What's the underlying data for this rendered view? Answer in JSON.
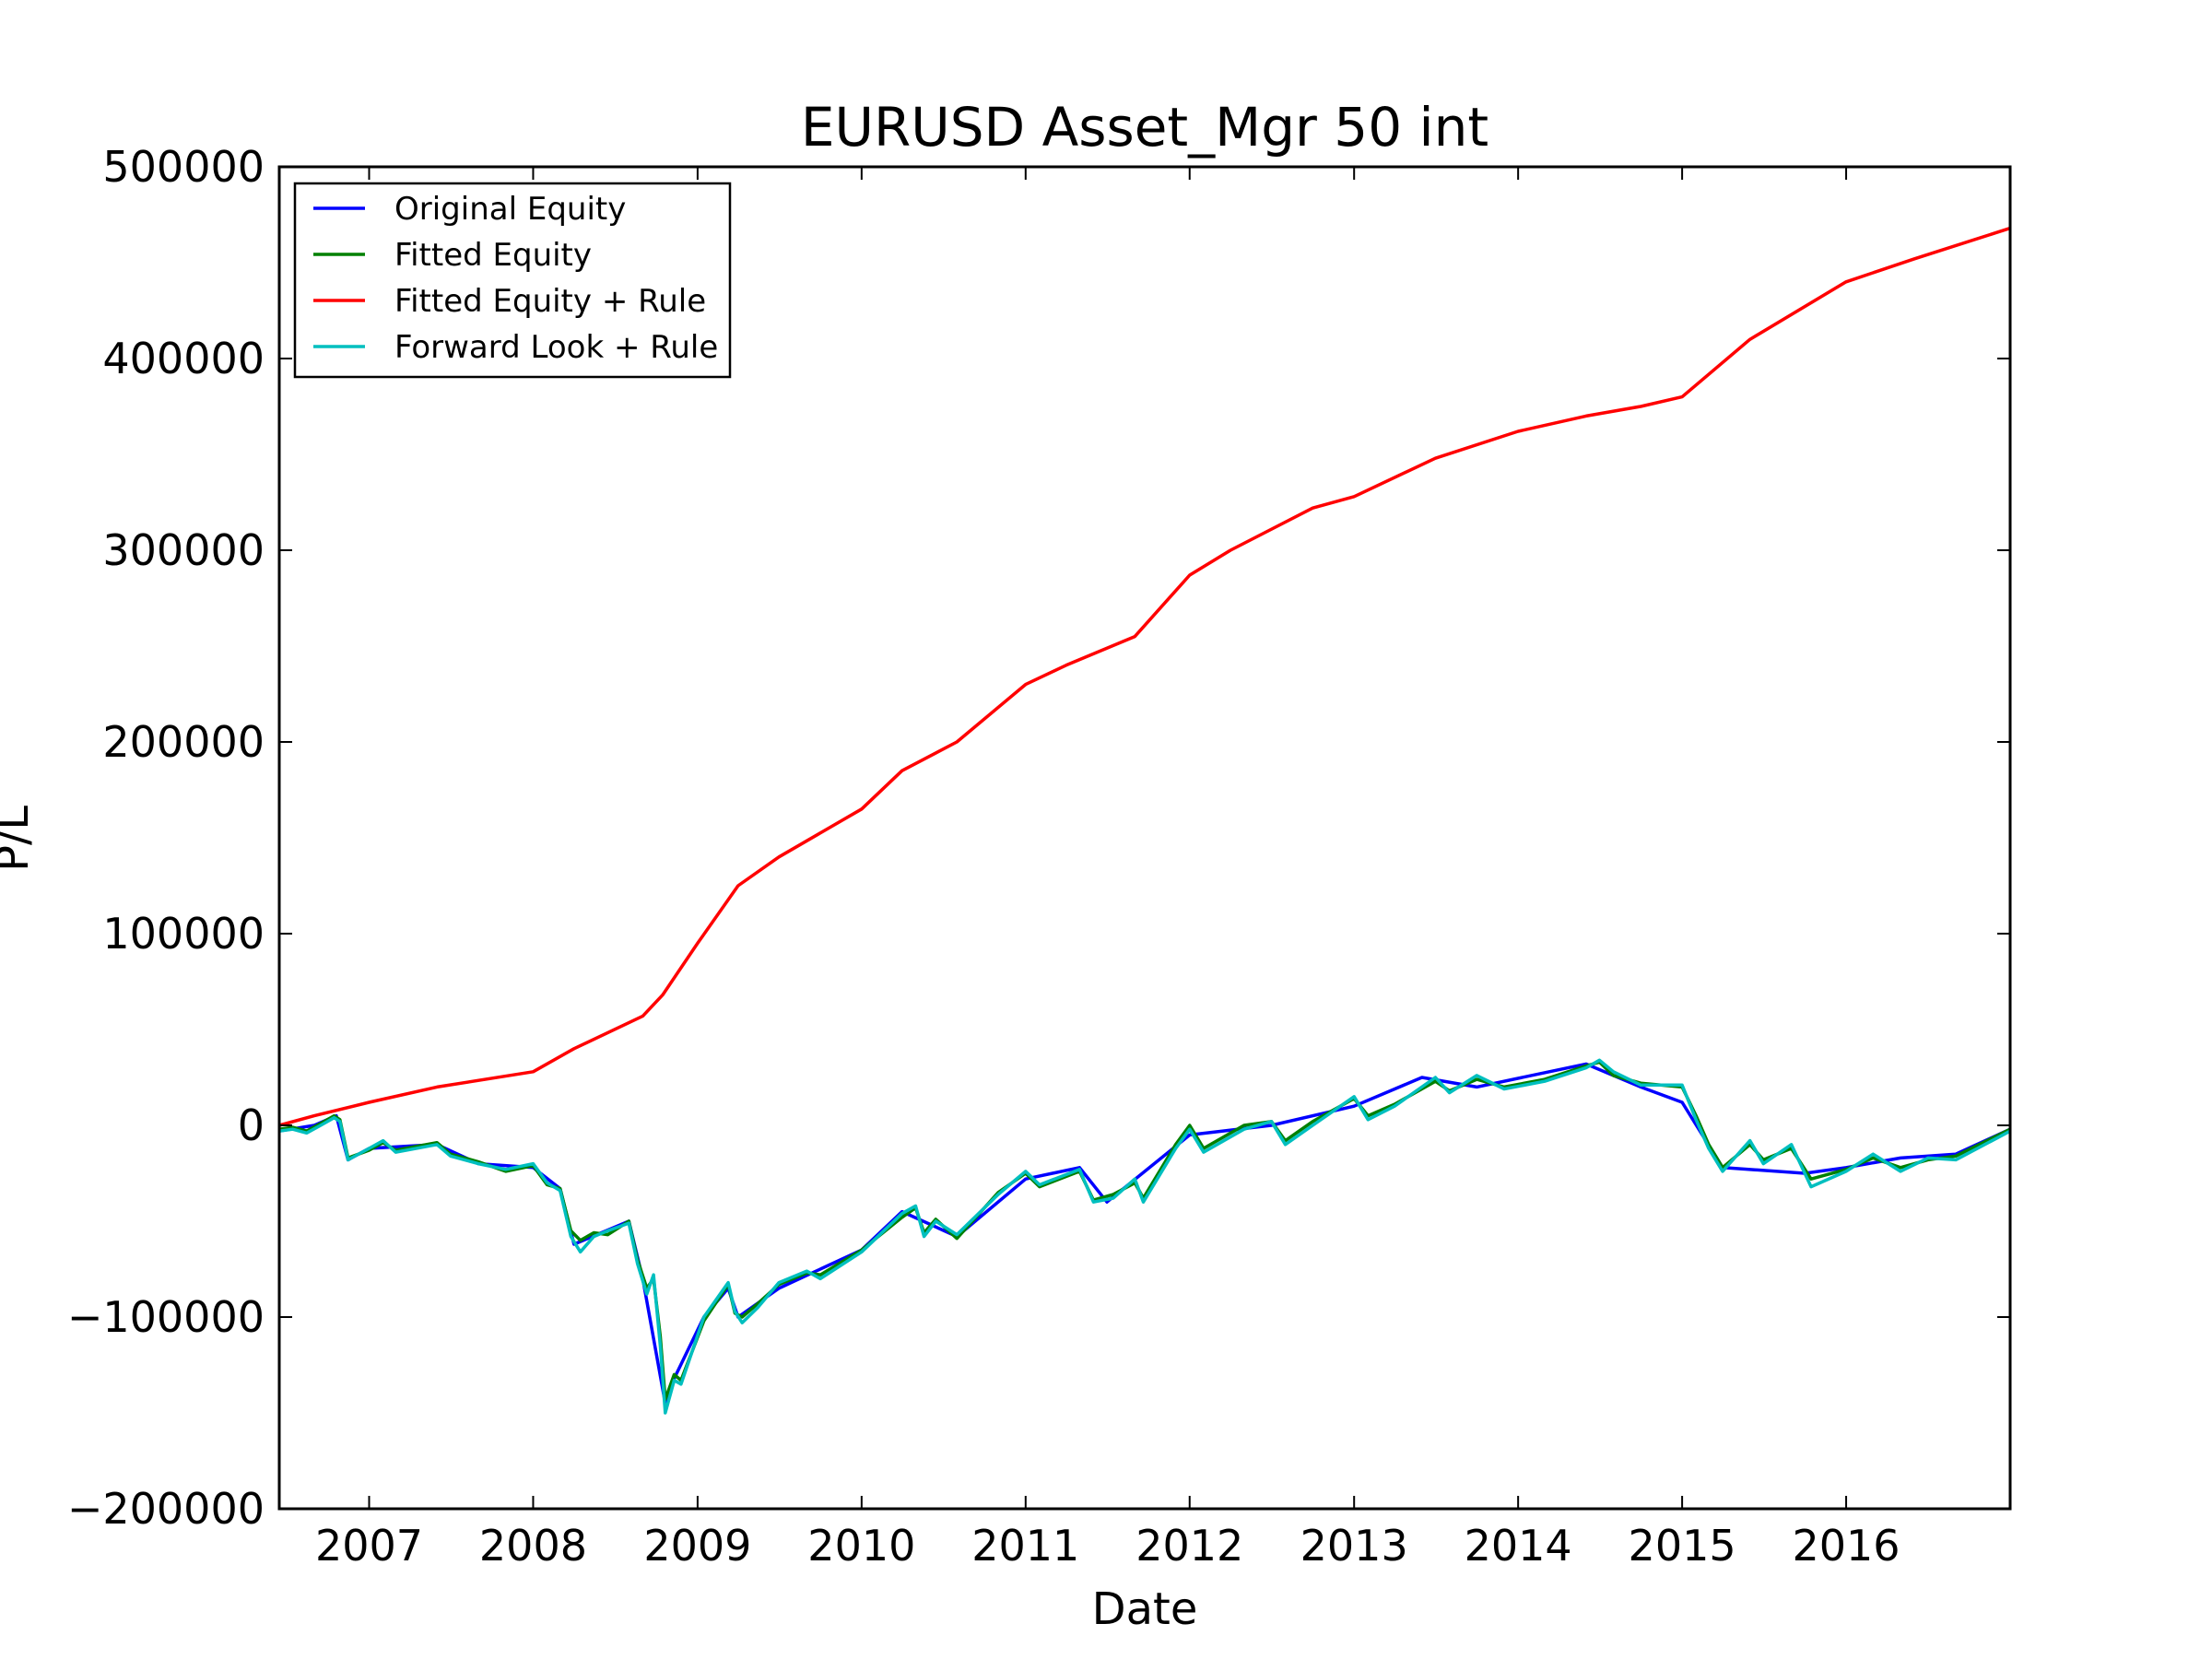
{
  "chart_data": {
    "type": "line",
    "title": "EURUSD Asset_Mgr 50 int",
    "xlabel": "Date",
    "ylabel": "P/L",
    "xlim": [
      "2006-06-15",
      "2016-12-31"
    ],
    "ylim": [
      -200000,
      500000
    ],
    "x_ticks": [
      "2007",
      "2008",
      "2009",
      "2010",
      "2011",
      "2012",
      "2013",
      "2014",
      "2015",
      "2016"
    ],
    "y_ticks": [
      {
        "value": -200000,
        "label": "−200000"
      },
      {
        "value": -100000,
        "label": "−100000"
      },
      {
        "value": 0,
        "label": "0"
      },
      {
        "value": 100000,
        "label": "100000"
      },
      {
        "value": 200000,
        "label": "200000"
      },
      {
        "value": 300000,
        "label": "300000"
      },
      {
        "value": 400000,
        "label": "400000"
      },
      {
        "value": 500000,
        "label": "500000"
      }
    ],
    "grid": false,
    "legend_position": "top-left",
    "series": [
      {
        "name": "Original Equity",
        "color": "#0000ff",
        "points": [
          [
            "2006-06-15",
            -3000
          ],
          [
            "2006-09-01",
            0
          ],
          [
            "2006-10-20",
            5000
          ],
          [
            "2006-11-15",
            -18000
          ],
          [
            "2007-01-01",
            -12000
          ],
          [
            "2007-06-01",
            -10000
          ],
          [
            "2007-09-01",
            -20000
          ],
          [
            "2008-01-01",
            -22000
          ],
          [
            "2008-03-01",
            -33000
          ],
          [
            "2008-04-01",
            -62000
          ],
          [
            "2008-08-01",
            -50000
          ],
          [
            "2008-09-01",
            -80000
          ],
          [
            "2008-10-21",
            -145000
          ],
          [
            "2008-11-10",
            -132000
          ],
          [
            "2009-01-15",
            -100000
          ],
          [
            "2009-03-10",
            -85000
          ],
          [
            "2009-04-01",
            -100000
          ],
          [
            "2009-07-01",
            -85000
          ],
          [
            "2010-01-01",
            -65000
          ],
          [
            "2010-04-01",
            -45000
          ],
          [
            "2010-08-01",
            -58000
          ],
          [
            "2011-01-01",
            -28000
          ],
          [
            "2011-05-01",
            -22000
          ],
          [
            "2011-07-01",
            -40000
          ],
          [
            "2012-01-01",
            -5000
          ],
          [
            "2012-07-01",
            0
          ],
          [
            "2013-01-01",
            10000
          ],
          [
            "2013-06-01",
            25000
          ],
          [
            "2013-10-01",
            20000
          ],
          [
            "2014-06-01",
            32000
          ],
          [
            "2014-10-01",
            20000
          ],
          [
            "2015-01-01",
            12000
          ],
          [
            "2015-04-01",
            -22000
          ],
          [
            "2015-10-01",
            -25000
          ],
          [
            "2016-01-01",
            -22000
          ],
          [
            "2016-05-01",
            -17000
          ],
          [
            "2016-09-01",
            -15000
          ],
          [
            "2016-12-31",
            -2000
          ]
        ]
      },
      {
        "name": "Fitted Equity",
        "color": "#008000",
        "points": [
          [
            "2006-06-15",
            -2000
          ],
          [
            "2006-07-15",
            -1000
          ],
          [
            "2006-08-15",
            -3000
          ],
          [
            "2006-09-15",
            1000
          ],
          [
            "2006-10-15",
            5000
          ],
          [
            "2006-10-28",
            3000
          ],
          [
            "2006-11-15",
            -17000
          ],
          [
            "2007-01-01",
            -13000
          ],
          [
            "2007-02-01",
            -9000
          ],
          [
            "2007-03-01",
            -13000
          ],
          [
            "2007-06-01",
            -9000
          ],
          [
            "2007-07-01",
            -15000
          ],
          [
            "2007-09-01",
            -19000
          ],
          [
            "2007-11-01",
            -24000
          ],
          [
            "2008-01-01",
            -21000
          ],
          [
            "2008-02-01",
            -31000
          ],
          [
            "2008-03-01",
            -33000
          ],
          [
            "2008-03-25",
            -55000
          ],
          [
            "2008-04-15",
            -60000
          ],
          [
            "2008-05-15",
            -56000
          ],
          [
            "2008-06-15",
            -57000
          ],
          [
            "2008-08-01",
            -50000
          ],
          [
            "2008-08-20",
            -70000
          ],
          [
            "2008-09-10",
            -85000
          ],
          [
            "2008-09-25",
            -80000
          ],
          [
            "2008-10-10",
            -110000
          ],
          [
            "2008-10-21",
            -143000
          ],
          [
            "2008-11-10",
            -130000
          ],
          [
            "2008-11-25",
            -133000
          ],
          [
            "2009-01-15",
            -102000
          ],
          [
            "2009-03-10",
            -83000
          ],
          [
            "2009-03-25",
            -98000
          ],
          [
            "2009-04-10",
            -100000
          ],
          [
            "2009-05-15",
            -93000
          ],
          [
            "2009-07-01",
            -83000
          ],
          [
            "2009-09-01",
            -77000
          ],
          [
            "2009-10-01",
            -78000
          ],
          [
            "2010-01-01",
            -65000
          ],
          [
            "2010-04-01",
            -48000
          ],
          [
            "2010-05-01",
            -43000
          ],
          [
            "2010-05-20",
            -56000
          ],
          [
            "2010-06-15",
            -49000
          ],
          [
            "2010-08-01",
            -59000
          ],
          [
            "2010-11-01",
            -35000
          ],
          [
            "2011-01-01",
            -25000
          ],
          [
            "2011-02-01",
            -32000
          ],
          [
            "2011-05-01",
            -24000
          ],
          [
            "2011-06-01",
            -39000
          ],
          [
            "2011-07-15",
            -36000
          ],
          [
            "2011-09-01",
            -30000
          ],
          [
            "2011-09-20",
            -38000
          ],
          [
            "2011-12-01",
            -10000
          ],
          [
            "2012-01-01",
            0
          ],
          [
            "2012-02-01",
            -12000
          ],
          [
            "2012-05-01",
            0
          ],
          [
            "2012-07-01",
            2000
          ],
          [
            "2012-08-01",
            -8000
          ],
          [
            "2012-10-01",
            2000
          ],
          [
            "2013-01-01",
            14000
          ],
          [
            "2013-02-01",
            5000
          ],
          [
            "2013-04-01",
            11000
          ],
          [
            "2013-07-01",
            23000
          ],
          [
            "2013-08-01",
            18000
          ],
          [
            "2013-10-01",
            24000
          ],
          [
            "2013-12-01",
            20000
          ],
          [
            "2014-03-01",
            24000
          ],
          [
            "2014-06-01",
            31000
          ],
          [
            "2014-07-01",
            33000
          ],
          [
            "2014-08-01",
            26000
          ],
          [
            "2014-10-01",
            22000
          ],
          [
            "2015-01-01",
            20000
          ],
          [
            "2015-02-01",
            5000
          ],
          [
            "2015-03-01",
            -10000
          ],
          [
            "2015-04-01",
            -22000
          ],
          [
            "2015-06-01",
            -10000
          ],
          [
            "2015-07-01",
            -18000
          ],
          [
            "2015-09-01",
            -12000
          ],
          [
            "2015-10-15",
            -28000
          ],
          [
            "2016-01-01",
            -23000
          ],
          [
            "2016-03-01",
            -17000
          ],
          [
            "2016-05-01",
            -22000
          ],
          [
            "2016-07-01",
            -18000
          ],
          [
            "2016-09-01",
            -16000
          ],
          [
            "2016-12-31",
            -2000
          ]
        ]
      },
      {
        "name": "Fitted Equity + Rule",
        "color": "#ff0000",
        "points": [
          [
            "2006-06-15",
            0
          ],
          [
            "2006-09-01",
            5000
          ],
          [
            "2007-01-01",
            12000
          ],
          [
            "2007-06-01",
            20000
          ],
          [
            "2008-01-01",
            28000
          ],
          [
            "2008-04-01",
            40000
          ],
          [
            "2008-09-01",
            57000
          ],
          [
            "2008-10-15",
            68000
          ],
          [
            "2009-01-01",
            95000
          ],
          [
            "2009-04-01",
            125000
          ],
          [
            "2009-07-01",
            140000
          ],
          [
            "2010-01-01",
            165000
          ],
          [
            "2010-04-01",
            185000
          ],
          [
            "2010-08-01",
            200000
          ],
          [
            "2011-01-01",
            230000
          ],
          [
            "2011-04-01",
            240000
          ],
          [
            "2011-09-01",
            255000
          ],
          [
            "2012-01-01",
            287000
          ],
          [
            "2012-04-01",
            300000
          ],
          [
            "2012-10-01",
            322000
          ],
          [
            "2013-01-01",
            328000
          ],
          [
            "2013-07-01",
            348000
          ],
          [
            "2014-01-01",
            362000
          ],
          [
            "2014-06-01",
            370000
          ],
          [
            "2014-10-01",
            375000
          ],
          [
            "2015-01-01",
            380000
          ],
          [
            "2015-06-01",
            410000
          ],
          [
            "2016-01-01",
            440000
          ],
          [
            "2016-06-01",
            452000
          ],
          [
            "2016-12-31",
            468000
          ]
        ]
      },
      {
        "name": "Forward Look + Rule",
        "color": "#00bfbf",
        "points": [
          [
            "2006-06-15",
            -3000
          ],
          [
            "2006-07-15",
            -2000
          ],
          [
            "2006-08-15",
            -4000
          ],
          [
            "2006-09-15",
            0
          ],
          [
            "2006-10-15",
            4000
          ],
          [
            "2006-10-28",
            2000
          ],
          [
            "2006-11-15",
            -18000
          ],
          [
            "2007-01-01",
            -12000
          ],
          [
            "2007-02-01",
            -8000
          ],
          [
            "2007-03-01",
            -14000
          ],
          [
            "2007-06-01",
            -10000
          ],
          [
            "2007-07-01",
            -16000
          ],
          [
            "2007-09-01",
            -20000
          ],
          [
            "2007-11-01",
            -23000
          ],
          [
            "2008-01-01",
            -20000
          ],
          [
            "2008-02-01",
            -30000
          ],
          [
            "2008-03-01",
            -34000
          ],
          [
            "2008-03-25",
            -58000
          ],
          [
            "2008-04-15",
            -66000
          ],
          [
            "2008-05-15",
            -58000
          ],
          [
            "2008-06-15",
            -55000
          ],
          [
            "2008-08-01",
            -51000
          ],
          [
            "2008-08-20",
            -72000
          ],
          [
            "2008-09-10",
            -88000
          ],
          [
            "2008-09-25",
            -78000
          ],
          [
            "2008-10-10",
            -115000
          ],
          [
            "2008-10-21",
            -150000
          ],
          [
            "2008-11-10",
            -133000
          ],
          [
            "2008-11-25",
            -135000
          ],
          [
            "2009-01-15",
            -100000
          ],
          [
            "2009-03-10",
            -82000
          ],
          [
            "2009-03-25",
            -97000
          ],
          [
            "2009-04-10",
            -103000
          ],
          [
            "2009-05-15",
            -95000
          ],
          [
            "2009-07-01",
            -82000
          ],
          [
            "2009-09-01",
            -76000
          ],
          [
            "2009-10-01",
            -80000
          ],
          [
            "2010-01-01",
            -66000
          ],
          [
            "2010-04-01",
            -46000
          ],
          [
            "2010-05-01",
            -42000
          ],
          [
            "2010-05-20",
            -58000
          ],
          [
            "2010-06-15",
            -50000
          ],
          [
            "2010-08-01",
            -57000
          ],
          [
            "2010-11-01",
            -36000
          ],
          [
            "2011-01-01",
            -24000
          ],
          [
            "2011-02-01",
            -31000
          ],
          [
            "2011-05-01",
            -23000
          ],
          [
            "2011-06-01",
            -40000
          ],
          [
            "2011-07-15",
            -38000
          ],
          [
            "2011-09-01",
            -28000
          ],
          [
            "2011-09-20",
            -40000
          ],
          [
            "2011-12-01",
            -12000
          ],
          [
            "2012-01-01",
            -2000
          ],
          [
            "2012-02-01",
            -14000
          ],
          [
            "2012-05-01",
            -2000
          ],
          [
            "2012-07-01",
            2000
          ],
          [
            "2012-08-01",
            -10000
          ],
          [
            "2012-10-01",
            0
          ],
          [
            "2013-01-01",
            15000
          ],
          [
            "2013-02-01",
            3000
          ],
          [
            "2013-04-01",
            10000
          ],
          [
            "2013-07-01",
            25000
          ],
          [
            "2013-08-01",
            17000
          ],
          [
            "2013-10-01",
            26000
          ],
          [
            "2013-12-01",
            19000
          ],
          [
            "2014-03-01",
            23000
          ],
          [
            "2014-06-01",
            30000
          ],
          [
            "2014-07-01",
            34000
          ],
          [
            "2014-08-01",
            28000
          ],
          [
            "2014-10-01",
            21000
          ],
          [
            "2015-01-01",
            21000
          ],
          [
            "2015-02-01",
            3000
          ],
          [
            "2015-03-01",
            -12000
          ],
          [
            "2015-04-01",
            -24000
          ],
          [
            "2015-06-01",
            -8000
          ],
          [
            "2015-07-01",
            -20000
          ],
          [
            "2015-09-01",
            -10000
          ],
          [
            "2015-10-15",
            -32000
          ],
          [
            "2016-01-01",
            -24000
          ],
          [
            "2016-03-01",
            -15000
          ],
          [
            "2016-05-01",
            -24000
          ],
          [
            "2016-07-01",
            -17000
          ],
          [
            "2016-09-01",
            -18000
          ],
          [
            "2016-12-31",
            -3000
          ]
        ]
      }
    ]
  }
}
